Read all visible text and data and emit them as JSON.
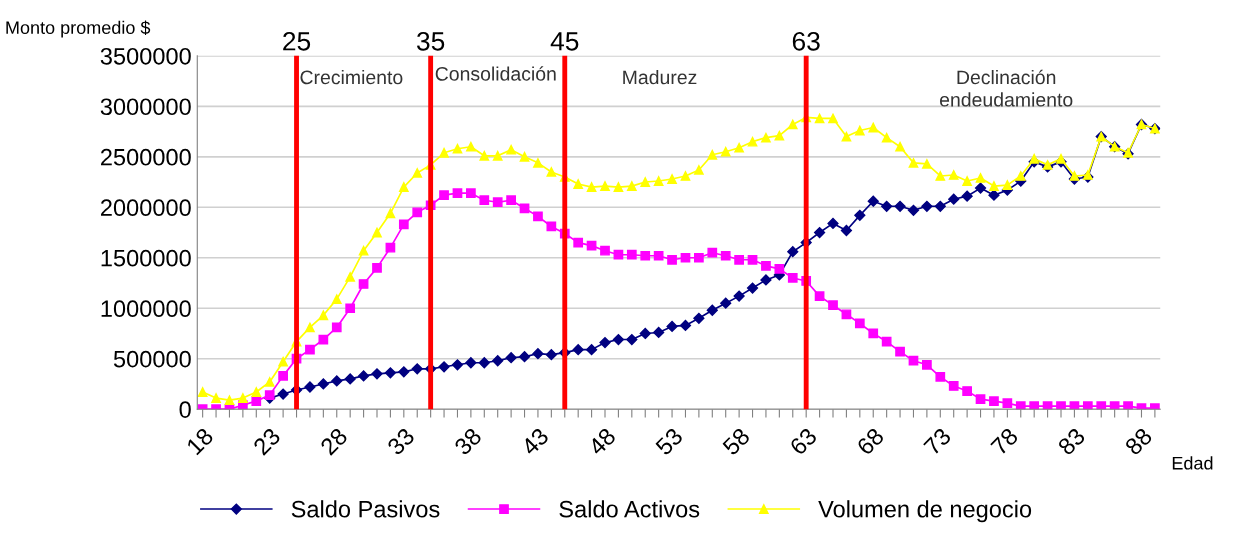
{
  "chart_data": {
    "type": "line",
    "ylabel": "Monto promedio $",
    "xlabel": "Edad",
    "x": [
      18,
      19,
      20,
      21,
      22,
      23,
      24,
      25,
      26,
      27,
      28,
      29,
      30,
      31,
      32,
      33,
      34,
      35,
      36,
      37,
      38,
      39,
      40,
      41,
      42,
      43,
      44,
      45,
      46,
      47,
      48,
      49,
      50,
      51,
      52,
      53,
      54,
      55,
      56,
      57,
      58,
      59,
      60,
      61,
      62,
      63,
      64,
      65,
      66,
      67,
      68,
      69,
      70,
      71,
      72,
      73,
      74,
      75,
      76,
      77,
      78,
      79,
      80,
      81,
      82,
      83,
      84,
      85,
      86,
      87,
      88,
      89
    ],
    "series": [
      {
        "name": "Saldo Pasivos",
        "color": "#000080",
        "marker": "diamond",
        "values": [
          null,
          null,
          null,
          null,
          null,
          110000,
          150000,
          190000,
          220000,
          250000,
          280000,
          300000,
          330000,
          350000,
          360000,
          370000,
          400000,
          400000,
          420000,
          440000,
          460000,
          460000,
          480000,
          510000,
          520000,
          550000,
          540000,
          560000,
          590000,
          590000,
          660000,
          690000,
          690000,
          750000,
          760000,
          820000,
          830000,
          900000,
          980000,
          1050000,
          1120000,
          1200000,
          1280000,
          1330000,
          1560000,
          1650000,
          1750000,
          1840000,
          1770000,
          1920000,
          2060000,
          2010000,
          2010000,
          1970000,
          2010000,
          2010000,
          2080000,
          2110000,
          2190000,
          2120000,
          2170000,
          2260000,
          2450000,
          2400000,
          2450000,
          2280000,
          2300000,
          2700000,
          2600000,
          2530000,
          2820000,
          2780000
        ]
      },
      {
        "name": "Saldo Activos",
        "color": "#ff00ff",
        "marker": "square",
        "values": [
          0,
          0,
          0,
          40000,
          80000,
          140000,
          330000,
          500000,
          590000,
          690000,
          810000,
          1000000,
          1240000,
          1400000,
          1600000,
          1830000,
          1950000,
          2020000,
          2120000,
          2140000,
          2140000,
          2070000,
          2050000,
          2070000,
          1990000,
          1910000,
          1810000,
          1740000,
          1650000,
          1620000,
          1570000,
          1530000,
          1530000,
          1520000,
          1520000,
          1480000,
          1500000,
          1500000,
          1550000,
          1520000,
          1480000,
          1480000,
          1420000,
          1390000,
          1300000,
          1270000,
          1120000,
          1030000,
          940000,
          850000,
          750000,
          670000,
          570000,
          480000,
          440000,
          320000,
          230000,
          180000,
          100000,
          80000,
          60000,
          30000,
          30000,
          30000,
          30000,
          30000,
          30000,
          30000,
          30000,
          30000,
          10000,
          10000
        ]
      },
      {
        "name": "Volumen de negocio",
        "color": "#ffff00",
        "marker": "triangle",
        "values": [
          170000,
          110000,
          90000,
          110000,
          170000,
          270000,
          470000,
          670000,
          810000,
          930000,
          1090000,
          1310000,
          1570000,
          1750000,
          1940000,
          2200000,
          2340000,
          2420000,
          2540000,
          2580000,
          2600000,
          2510000,
          2510000,
          2570000,
          2500000,
          2440000,
          2350000,
          2300000,
          2230000,
          2200000,
          2210000,
          2200000,
          2210000,
          2250000,
          2260000,
          2280000,
          2310000,
          2370000,
          2520000,
          2550000,
          2590000,
          2650000,
          2690000,
          2710000,
          2820000,
          2890000,
          2880000,
          2880000,
          2700000,
          2760000,
          2790000,
          2690000,
          2600000,
          2440000,
          2430000,
          2310000,
          2320000,
          2260000,
          2290000,
          2210000,
          2220000,
          2310000,
          2480000,
          2420000,
          2480000,
          2310000,
          2320000,
          2700000,
          2600000,
          2540000,
          2820000,
          2780000
        ]
      }
    ],
    "xlim": [
      17.6,
      89.4
    ],
    "xticks": [
      18,
      {
        "value": 19,
        "label": null
      },
      {
        "value": 20,
        "label": null
      },
      {
        "value": 21,
        "label": null
      },
      {
        "value": 22,
        "label": null
      },
      23,
      {
        "value": 24,
        "label": null
      },
      {
        "value": 25,
        "label": null
      },
      {
        "value": 26,
        "label": null
      },
      {
        "value": 27,
        "label": null
      },
      28,
      {
        "value": 29,
        "label": null
      },
      {
        "value": 30,
        "label": null
      },
      {
        "value": 31,
        "label": null
      },
      {
        "value": 32,
        "label": null
      },
      33,
      {
        "value": 34,
        "label": null
      },
      {
        "value": 35,
        "label": null
      },
      {
        "value": 36,
        "label": null
      },
      {
        "value": 37,
        "label": null
      },
      38,
      {
        "value": 39,
        "label": null
      },
      {
        "value": 40,
        "label": null
      },
      {
        "value": 41,
        "label": null
      },
      {
        "value": 42,
        "label": null
      },
      43,
      {
        "value": 44,
        "label": null
      },
      {
        "value": 45,
        "label": null
      },
      {
        "value": 46,
        "label": null
      },
      {
        "value": 47,
        "label": null
      },
      48,
      {
        "value": 49,
        "label": null
      },
      {
        "value": 50,
        "label": null
      },
      {
        "value": 51,
        "label": null
      },
      {
        "value": 52,
        "label": null
      },
      53,
      {
        "value": 54,
        "label": null
      },
      {
        "value": 55,
        "label": null
      },
      {
        "value": 56,
        "label": null
      },
      {
        "value": 57,
        "label": null
      },
      58,
      {
        "value": 59,
        "label": null
      },
      {
        "value": 60,
        "label": null
      },
      {
        "value": 61,
        "label": null
      },
      {
        "value": 62,
        "label": null
      },
      63,
      {
        "value": 64,
        "label": null
      },
      {
        "value": 65,
        "label": null
      },
      {
        "value": 66,
        "label": null
      },
      {
        "value": 67,
        "label": null
      },
      68,
      {
        "value": 69,
        "label": null
      },
      {
        "value": 70,
        "label": null
      },
      {
        "value": 71,
        "label": null
      },
      {
        "value": 72,
        "label": null
      },
      73,
      {
        "value": 74,
        "label": null
      },
      {
        "value": 75,
        "label": null
      },
      {
        "value": 76,
        "label": null
      },
      {
        "value": 77,
        "label": null
      },
      78,
      {
        "value": 79,
        "label": null
      },
      {
        "value": 80,
        "label": null
      },
      {
        "value": 81,
        "label": null
      },
      {
        "value": 82,
        "label": null
      },
      83,
      {
        "value": 84,
        "label": null
      },
      {
        "value": 85,
        "label": null
      },
      {
        "value": 86,
        "label": null
      },
      {
        "value": 87,
        "label": null
      },
      88,
      {
        "value": 89,
        "label": null
      }
    ],
    "ylim": [
      0,
      3500000
    ],
    "yticks": [
      0,
      500000,
      1000000,
      1500000,
      2000000,
      2500000,
      3000000,
      3500000
    ],
    "ref_lines": [
      {
        "axis": "x",
        "value": 25,
        "label": "25",
        "color": "#ff0000"
      },
      {
        "axis": "x",
        "value": 35,
        "label": "35",
        "color": "#ff0000"
      },
      {
        "axis": "x",
        "value": 45,
        "label": "45",
        "color": "#ff0000"
      },
      {
        "axis": "x",
        "value": 63,
        "label": "63",
        "color": "#ff0000"
      }
    ],
    "annotations": [
      "Crecimiento",
      "Consolidación",
      "Madurez",
      "Declinación\nendeudamiento"
    ],
    "grid": "y",
    "legend": "bottom",
    "line_style": "solid"
  }
}
